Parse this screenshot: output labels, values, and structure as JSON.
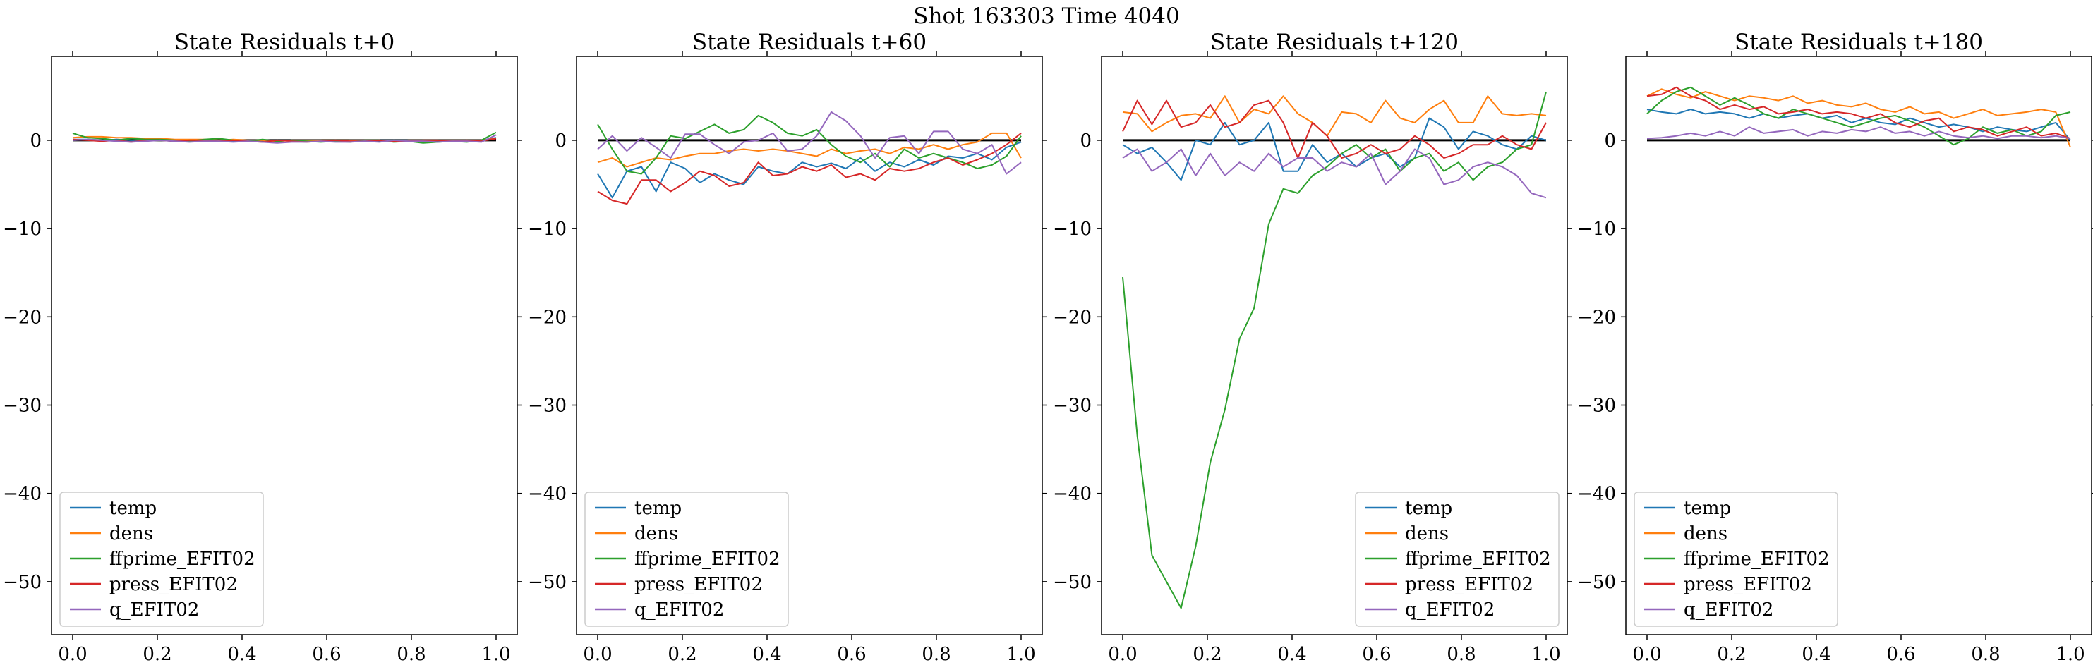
{
  "figure_title": "Shot 163303   Time 4040",
  "colors": {
    "temp": "#1f77b4",
    "dens": "#ff7f0e",
    "ffprime_EFIT02": "#2ca02c",
    "press_EFIT02": "#d62728",
    "q_EFIT02": "#9467bd",
    "zero_line": "#000000"
  },
  "chart_data": [
    {
      "type": "line",
      "title": "State Residuals t+0",
      "xlim": [
        -0.05,
        1.05
      ],
      "ylim": [
        -56,
        9.5
      ],
      "x_ticks": [
        0.0,
        0.2,
        0.4,
        0.6,
        0.8,
        1.0
      ],
      "x_tick_labels": [
        "0.0",
        "0.2",
        "0.4",
        "0.6",
        "0.8",
        "1.0"
      ],
      "y_ticks": [
        0,
        -10,
        -20,
        -30,
        -40,
        -50
      ],
      "y_tick_labels": [
        "0",
        "−10",
        "−20",
        "−30",
        "−40",
        "−50"
      ],
      "zero_line": true,
      "legend_position": "lower left",
      "x": [
        0.0,
        0.0345,
        0.069,
        0.1034,
        0.1379,
        0.1724,
        0.2069,
        0.2414,
        0.2759,
        0.3103,
        0.3448,
        0.3793,
        0.4138,
        0.4483,
        0.4828,
        0.5172,
        0.5517,
        0.5862,
        0.6207,
        0.6552,
        0.6897,
        0.7241,
        0.7586,
        0.7931,
        0.8276,
        0.8621,
        0.8966,
        0.931,
        0.9655,
        1.0
      ],
      "series": [
        {
          "name": "temp",
          "values": [
            0.1,
            0.1,
            0.0,
            0.1,
            0.0,
            0.0,
            0.0,
            -0.1,
            0.0,
            0.0,
            0.0,
            -0.1,
            0.0,
            0.0,
            -0.1,
            0.0,
            0.0,
            0.0,
            -0.1,
            0.0,
            0.0,
            0.0,
            0.0,
            0.0,
            0.0,
            0.0,
            0.0,
            0.0,
            0.0,
            0.3
          ]
        },
        {
          "name": "dens",
          "values": [
            0.3,
            0.4,
            0.4,
            0.3,
            0.3,
            0.2,
            0.2,
            0.1,
            0.1,
            0.1,
            0.0,
            0.1,
            0.0,
            0.0,
            -0.1,
            0.0,
            0.0,
            0.0,
            0.0,
            0.0,
            0.0,
            0.0,
            -0.1,
            0.0,
            0.0,
            0.0,
            0.0,
            0.0,
            0.0,
            0.2
          ]
        },
        {
          "name": "ffprime_EFIT02",
          "values": [
            0.8,
            0.3,
            0.2,
            0.0,
            0.2,
            0.1,
            0.1,
            0.0,
            -0.1,
            0.1,
            0.2,
            0.0,
            -0.1,
            0.1,
            -0.1,
            0.0,
            -0.1,
            -0.2,
            -0.1,
            -0.2,
            0.0,
            0.0,
            -0.2,
            -0.1,
            -0.3,
            -0.2,
            -0.1,
            -0.2,
            0.0,
            0.9
          ]
        },
        {
          "name": "press_EFIT02",
          "values": [
            0.1,
            0.0,
            -0.1,
            0.0,
            -0.2,
            0.0,
            0.0,
            -0.1,
            0.0,
            0.0,
            -0.1,
            0.0,
            -0.1,
            -0.2,
            0.0,
            -0.1,
            -0.2,
            -0.1,
            0.0,
            -0.1,
            -0.1,
            0.0,
            -0.1,
            -0.1,
            0.0,
            0.0,
            -0.1,
            0.0,
            -0.1,
            0.2
          ]
        },
        {
          "name": "q_EFIT02",
          "values": [
            0.0,
            0.1,
            0.0,
            -0.1,
            -0.2,
            -0.1,
            0.0,
            -0.1,
            -0.2,
            -0.1,
            -0.1,
            -0.2,
            -0.1,
            -0.2,
            -0.3,
            -0.2,
            -0.2,
            -0.1,
            -0.2,
            -0.2,
            -0.1,
            -0.2,
            0.0,
            -0.1,
            -0.1,
            -0.2,
            -0.1,
            -0.1,
            -0.2,
            0.6
          ]
        }
      ]
    },
    {
      "type": "line",
      "title": "State Residuals t+60",
      "xlim": [
        -0.05,
        1.05
      ],
      "ylim": [
        -56,
        9.5
      ],
      "x_ticks": [
        0.0,
        0.2,
        0.4,
        0.6,
        0.8,
        1.0
      ],
      "x_tick_labels": [
        "0.0",
        "0.2",
        "0.4",
        "0.6",
        "0.8",
        "1.0"
      ],
      "y_ticks": [
        0,
        -10,
        -20,
        -30,
        -40,
        -50
      ],
      "y_tick_labels": [
        "0",
        "−10",
        "−20",
        "−30",
        "−40",
        "−50"
      ],
      "zero_line": true,
      "legend_position": "lower left",
      "x": [
        0.0,
        0.0345,
        0.069,
        0.1034,
        0.1379,
        0.1724,
        0.2069,
        0.2414,
        0.2759,
        0.3103,
        0.3448,
        0.3793,
        0.4138,
        0.4483,
        0.4828,
        0.5172,
        0.5517,
        0.5862,
        0.6207,
        0.6552,
        0.6897,
        0.7241,
        0.7586,
        0.7931,
        0.8276,
        0.8621,
        0.8966,
        0.931,
        0.9655,
        1.0
      ],
      "series": [
        {
          "name": "temp",
          "values": [
            -3.8,
            -6.5,
            -3.5,
            -3.0,
            -5.8,
            -2.5,
            -3.2,
            -4.8,
            -3.8,
            -4.5,
            -5.0,
            -3.0,
            -3.5,
            -3.8,
            -2.5,
            -3.0,
            -2.6,
            -3.2,
            -2.0,
            -3.5,
            -2.5,
            -3.0,
            -2.2,
            -2.8,
            -1.8,
            -2.0,
            -1.5,
            -2.2,
            -0.8,
            -0.2
          ]
        },
        {
          "name": "dens",
          "values": [
            -2.5,
            -2.0,
            -3.0,
            -2.5,
            -2.0,
            -2.2,
            -1.8,
            -1.5,
            -1.5,
            -1.2,
            -1.0,
            -1.2,
            -1.0,
            -1.2,
            -1.5,
            -1.8,
            -1.0,
            -1.5,
            -1.2,
            -1.0,
            -1.5,
            -0.8,
            -1.0,
            -0.5,
            -1.0,
            -0.5,
            -0.2,
            0.8,
            0.8,
            -2.0
          ]
        },
        {
          "name": "ffprime_EFIT02",
          "values": [
            1.8,
            -1.0,
            -3.5,
            -3.8,
            -2.0,
            0.5,
            0.2,
            1.0,
            1.8,
            0.8,
            1.2,
            2.8,
            2.0,
            0.8,
            0.5,
            1.2,
            -0.5,
            -1.8,
            -2.5,
            -1.5,
            -3.0,
            -1.0,
            -2.0,
            -1.5,
            -2.0,
            -2.5,
            -3.2,
            -2.8,
            -1.8,
            0.5
          ]
        },
        {
          "name": "press_EFIT02",
          "values": [
            -5.8,
            -6.8,
            -7.2,
            -4.5,
            -4.5,
            -5.8,
            -4.8,
            -3.5,
            -4.0,
            -5.2,
            -4.8,
            -2.5,
            -4.0,
            -3.8,
            -3.0,
            -3.5,
            -2.8,
            -4.2,
            -3.8,
            -4.5,
            -3.2,
            -3.5,
            -3.2,
            -2.5,
            -2.0,
            -2.8,
            -2.2,
            -1.5,
            -0.5,
            0.8
          ]
        },
        {
          "name": "q_EFIT02",
          "values": [
            -1.0,
            0.5,
            -1.2,
            0.3,
            -0.8,
            -2.0,
            0.7,
            0.7,
            -0.5,
            -1.5,
            -0.2,
            0.0,
            0.8,
            -1.2,
            -1.0,
            0.5,
            3.2,
            2.2,
            0.5,
            -2.0,
            0.3,
            0.5,
            -1.5,
            1.0,
            1.0,
            -1.0,
            -1.5,
            -0.5,
            -3.8,
            -2.5
          ]
        }
      ]
    },
    {
      "type": "line",
      "title": "State Residuals t+120",
      "xlim": [
        -0.05,
        1.05
      ],
      "ylim": [
        -56,
        9.5
      ],
      "x_ticks": [
        0.0,
        0.2,
        0.4,
        0.6,
        0.8,
        1.0
      ],
      "x_tick_labels": [
        "0.0",
        "0.2",
        "0.4",
        "0.6",
        "0.8",
        "1.0"
      ],
      "y_ticks": [
        0,
        -10,
        -20,
        -30,
        -40,
        -50
      ],
      "y_tick_labels": [
        "0",
        "−10",
        "−20",
        "−30",
        "−40",
        "−50"
      ],
      "zero_line": true,
      "legend_position": "lower right",
      "x": [
        0.0,
        0.0345,
        0.069,
        0.1034,
        0.1379,
        0.1724,
        0.2069,
        0.2414,
        0.2759,
        0.3103,
        0.3448,
        0.3793,
        0.4138,
        0.4483,
        0.4828,
        0.5172,
        0.5517,
        0.5862,
        0.6207,
        0.6552,
        0.6897,
        0.7241,
        0.7586,
        0.7931,
        0.8276,
        0.8621,
        0.8966,
        0.931,
        0.9655,
        1.0
      ],
      "series": [
        {
          "name": "temp",
          "values": [
            -0.5,
            -1.5,
            -0.8,
            -2.5,
            -4.5,
            0.0,
            -0.5,
            2.0,
            -0.5,
            0.0,
            2.0,
            -3.5,
            -3.5,
            -0.5,
            -2.5,
            -1.5,
            -3.0,
            -2.0,
            -1.5,
            -3.0,
            -2.0,
            2.5,
            1.5,
            -1.0,
            1.0,
            0.5,
            -0.5,
            -1.0,
            0.5,
            0.0
          ]
        },
        {
          "name": "dens",
          "values": [
            3.2,
            3.0,
            1.0,
            2.0,
            2.8,
            3.0,
            2.5,
            5.0,
            2.0,
            3.5,
            3.0,
            5.0,
            3.0,
            2.0,
            0.5,
            3.2,
            3.0,
            2.0,
            4.5,
            2.5,
            2.0,
            3.5,
            4.5,
            2.0,
            2.0,
            5.0,
            3.0,
            2.8,
            3.0,
            2.8
          ]
        },
        {
          "name": "ffprime_EFIT02",
          "values": [
            -15.5,
            -33.5,
            -47.0,
            -50.0,
            -53.0,
            -46.0,
            -36.5,
            -30.5,
            -22.5,
            -19.0,
            -9.5,
            -5.5,
            -6.0,
            -4.0,
            -3.0,
            -1.5,
            -0.5,
            -2.0,
            -1.0,
            -3.5,
            -2.0,
            -1.5,
            -3.5,
            -2.5,
            -4.5,
            -3.0,
            -2.5,
            -1.0,
            -0.5,
            5.5
          ]
        },
        {
          "name": "press_EFIT02",
          "values": [
            1.0,
            4.5,
            1.8,
            4.5,
            1.5,
            2.0,
            4.0,
            1.5,
            2.0,
            4.0,
            4.5,
            2.0,
            -2.0,
            2.0,
            0.5,
            -2.0,
            -1.5,
            -0.5,
            -1.5,
            -1.0,
            0.5,
            -0.5,
            -2.0,
            -1.5,
            -0.5,
            -0.5,
            0.5,
            -0.5,
            -1.0,
            2.0
          ]
        },
        {
          "name": "q_EFIT02",
          "values": [
            -2.0,
            -1.0,
            -3.5,
            -2.5,
            -1.0,
            -4.0,
            -1.5,
            -4.0,
            -2.5,
            -3.5,
            -1.5,
            -3.0,
            -2.0,
            -2.0,
            -3.5,
            -2.5,
            -3.0,
            -1.5,
            -5.0,
            -3.5,
            -1.0,
            -2.0,
            -5.0,
            -4.5,
            -3.0,
            -2.5,
            -3.0,
            -4.0,
            -6.0,
            -6.5
          ]
        }
      ]
    },
    {
      "type": "line",
      "title": "State Residuals t+180",
      "xlim": [
        -0.05,
        1.05
      ],
      "ylim": [
        -56,
        9.5
      ],
      "x_ticks": [
        0.0,
        0.2,
        0.4,
        0.6,
        0.8,
        1.0
      ],
      "x_tick_labels": [
        "0.0",
        "0.2",
        "0.4",
        "0.6",
        "0.8",
        "1.0"
      ],
      "y_ticks": [
        0,
        -10,
        -20,
        -30,
        -40,
        -50
      ],
      "y_tick_labels": [
        "0",
        "−10",
        "−20",
        "−30",
        "−40",
        "−50"
      ],
      "zero_line": true,
      "legend_position": "lower left",
      "x": [
        0.0,
        0.0345,
        0.069,
        0.1034,
        0.1379,
        0.1724,
        0.2069,
        0.2414,
        0.2759,
        0.3103,
        0.3448,
        0.3793,
        0.4138,
        0.4483,
        0.4828,
        0.5172,
        0.5517,
        0.5862,
        0.6207,
        0.6552,
        0.6897,
        0.7241,
        0.7586,
        0.7931,
        0.8276,
        0.8621,
        0.8966,
        0.931,
        0.9655,
        1.0
      ],
      "series": [
        {
          "name": "temp",
          "values": [
            3.5,
            3.2,
            3.0,
            3.5,
            3.0,
            3.2,
            3.0,
            2.5,
            3.0,
            2.5,
            2.8,
            3.0,
            2.5,
            2.8,
            2.0,
            2.5,
            2.0,
            1.8,
            2.5,
            2.0,
            1.5,
            1.8,
            1.5,
            1.0,
            1.5,
            1.2,
            1.0,
            1.5,
            2.0,
            0.0
          ]
        },
        {
          "name": "dens",
          "values": [
            5.0,
            5.8,
            5.2,
            4.8,
            5.5,
            5.0,
            4.5,
            5.0,
            4.8,
            4.5,
            5.0,
            4.2,
            4.5,
            4.0,
            3.8,
            4.2,
            3.5,
            3.2,
            3.8,
            3.0,
            3.2,
            2.5,
            3.0,
            3.5,
            2.8,
            3.0,
            3.2,
            3.5,
            3.2,
            -0.8
          ]
        },
        {
          "name": "ffprime_EFIT02",
          "values": [
            3.0,
            4.5,
            5.5,
            6.0,
            5.0,
            4.0,
            4.8,
            4.0,
            3.0,
            2.5,
            3.5,
            3.0,
            2.5,
            2.0,
            1.5,
            2.0,
            2.5,
            2.8,
            2.2,
            1.5,
            0.5,
            -0.5,
            0.2,
            1.5,
            0.8,
            1.2,
            0.5,
            1.0,
            2.8,
            3.2
          ]
        },
        {
          "name": "press_EFIT02",
          "values": [
            5.0,
            5.2,
            6.0,
            5.0,
            4.5,
            3.5,
            4.0,
            3.5,
            3.8,
            3.0,
            3.2,
            3.5,
            3.0,
            3.2,
            3.0,
            2.5,
            3.0,
            2.0,
            1.5,
            2.2,
            2.5,
            1.0,
            1.5,
            1.2,
            0.5,
            1.0,
            1.5,
            0.5,
            0.8,
            0.2
          ]
        },
        {
          "name": "q_EFIT02",
          "values": [
            0.2,
            0.3,
            0.5,
            0.8,
            0.5,
            1.0,
            0.5,
            1.5,
            0.8,
            1.0,
            1.2,
            0.5,
            1.0,
            0.8,
            1.2,
            1.0,
            1.5,
            0.8,
            1.0,
            0.5,
            1.0,
            0.5,
            0.3,
            0.5,
            0.2,
            0.5,
            0.5,
            0.3,
            0.5,
            0.2
          ]
        }
      ]
    }
  ]
}
